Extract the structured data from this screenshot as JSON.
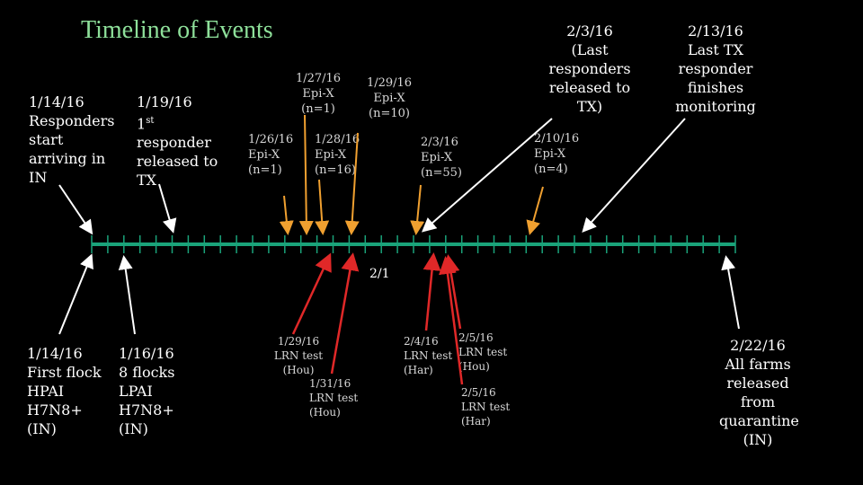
{
  "title": "Timeline of Events",
  "axis_label": "2/1",
  "top_events": [
    {
      "id": "responders-start",
      "lines": [
        "1/14/16",
        "Responders",
        "start",
        "arriving in",
        "IN"
      ]
    },
    {
      "id": "first-released",
      "lines": [
        "1/19/16",
        "1st responder",
        "released to",
        "TX"
      ]
    },
    {
      "id": "last-released",
      "lines": [
        "2/3/16",
        "(Last",
        "responders",
        "released to",
        "TX)"
      ]
    },
    {
      "id": "last-finishes",
      "lines": [
        "2/13/16",
        "Last TX",
        "responder",
        "finishes",
        "monitoring"
      ]
    }
  ],
  "superscript": "st",
  "epi_events": [
    {
      "id": "epi-0126",
      "lines": [
        "1/26/16",
        "Epi-X",
        "(n=1)"
      ]
    },
    {
      "id": "epi-0127",
      "lines": [
        "1/27/16",
        "Epi-X",
        "(n=1)"
      ]
    },
    {
      "id": "epi-0128",
      "lines": [
        "1/28/16",
        "Epi-X",
        "(n=16)"
      ]
    },
    {
      "id": "epi-0129",
      "lines": [
        "1/29/16",
        "Epi-X",
        "(n=10)"
      ]
    },
    {
      "id": "epi-0203",
      "lines": [
        "2/3/16",
        "Epi-X",
        "(n=55)"
      ]
    },
    {
      "id": "epi-0210",
      "lines": [
        "2/10/16",
        "Epi-X",
        "(n=4)"
      ]
    }
  ],
  "bottom_events": [
    {
      "id": "first-flock",
      "lines": [
        "1/14/16",
        "First flock",
        "HPAI",
        "H7N8+",
        "(IN)"
      ]
    },
    {
      "id": "eight-flocks",
      "lines": [
        "1/16/16",
        "8 flocks",
        "LPAI",
        "H7N8+",
        "(IN)"
      ]
    },
    {
      "id": "quarantine-released",
      "lines": [
        "2/22/16",
        "All farms",
        "released",
        "from",
        "quarantine",
        "(IN)"
      ]
    }
  ],
  "lrn_tests": [
    {
      "id": "lrn-0129",
      "lines": [
        "1/29/16",
        "LRN test",
        "(Hou)"
      ]
    },
    {
      "id": "lrn-0131",
      "lines": [
        "1/31/16",
        "LRN test",
        "(Hou)"
      ]
    },
    {
      "id": "lrn-0204",
      "lines": [
        "2/4/16",
        "LRN test",
        "(Har)"
      ]
    },
    {
      "id": "lrn-0205-hou",
      "lines": [
        "2/5/16",
        "LRN test",
        "(Hou)"
      ]
    },
    {
      "id": "lrn-0205-har",
      "lines": [
        "2/5/16",
        "LRN test",
        "(Har)"
      ]
    }
  ],
  "colors": {
    "background": "#000000",
    "title": "#8ee09a",
    "axis": "#1aa37a",
    "arrow_white": "#ffffff",
    "arrow_orange": "#f0a030",
    "arrow_red": "#e02828"
  }
}
